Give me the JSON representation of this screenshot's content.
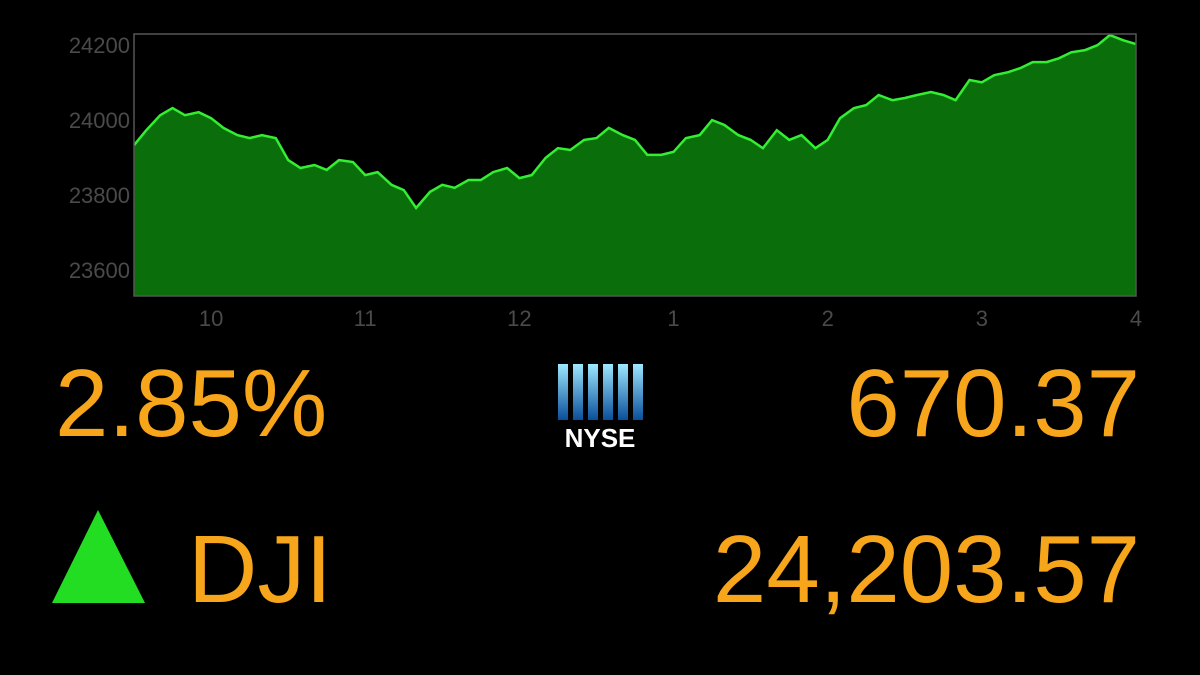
{
  "chart_data": {
    "type": "area",
    "x": [
      9.5,
      9.58,
      9.67,
      9.75,
      9.83,
      9.92,
      10.0,
      10.08,
      10.17,
      10.25,
      10.33,
      10.42,
      10.5,
      10.58,
      10.67,
      10.75,
      10.83,
      10.92,
      11.0,
      11.08,
      11.17,
      11.25,
      11.33,
      11.42,
      11.5,
      11.58,
      11.67,
      11.75,
      11.83,
      11.92,
      12.0,
      12.08,
      12.17,
      12.25,
      12.33,
      12.42,
      12.5,
      12.58,
      12.67,
      12.75,
      12.83,
      12.92,
      13.0,
      13.08,
      13.17,
      13.25,
      13.33,
      13.42,
      13.5,
      13.58,
      13.67,
      13.75,
      13.83,
      13.92,
      14.0,
      14.08,
      14.17,
      14.25,
      14.33,
      14.42,
      14.5,
      14.58,
      14.67,
      14.75,
      14.83,
      14.92,
      15.0,
      15.08,
      15.17,
      15.25,
      15.33,
      15.42,
      15.5,
      15.58,
      15.67,
      15.75,
      15.83,
      15.92,
      16.0
    ],
    "values": [
      23933,
      23973,
      24013,
      24032,
      24013,
      24021,
      24005,
      23979,
      23960,
      23952,
      23960,
      23952,
      23893,
      23872,
      23880,
      23867,
      23893,
      23888,
      23853,
      23861,
      23827,
      23813,
      23765,
      23808,
      23827,
      23819,
      23840,
      23840,
      23861,
      23872,
      23845,
      23853,
      23899,
      23925,
      23920,
      23947,
      23952,
      23979,
      23960,
      23947,
      23907,
      23907,
      23915,
      23952,
      23960,
      24000,
      23987,
      23960,
      23947,
      23925,
      23973,
      23947,
      23960,
      23925,
      23947,
      24005,
      24032,
      24040,
      24067,
      24053,
      24059,
      24067,
      24075,
      24067,
      24053,
      24107,
      24101,
      24120,
      24128,
      24139,
      24155,
      24155,
      24165,
      24181,
      24187,
      24200,
      24227,
      24213,
      24203
    ],
    "color": "#0a6e0a",
    "line_color": "#33ee33",
    "xlim": [
      9.5,
      16
    ],
    "xticks": [
      10,
      11,
      12,
      {
        "value": 13,
        "label": "1"
      },
      {
        "value": 14,
        "label": "2"
      },
      {
        "value": 15,
        "label": "3"
      },
      {
        "value": 16,
        "label": "4"
      }
    ],
    "ylim": [
      23530,
      24230
    ],
    "yticks": [
      23600,
      23800,
      24000,
      24200
    ]
  },
  "quote": {
    "change_percent": "2.85%",
    "exchange": "NYSE",
    "points": "670.37",
    "index": "DJI",
    "level": "24,203.57"
  }
}
